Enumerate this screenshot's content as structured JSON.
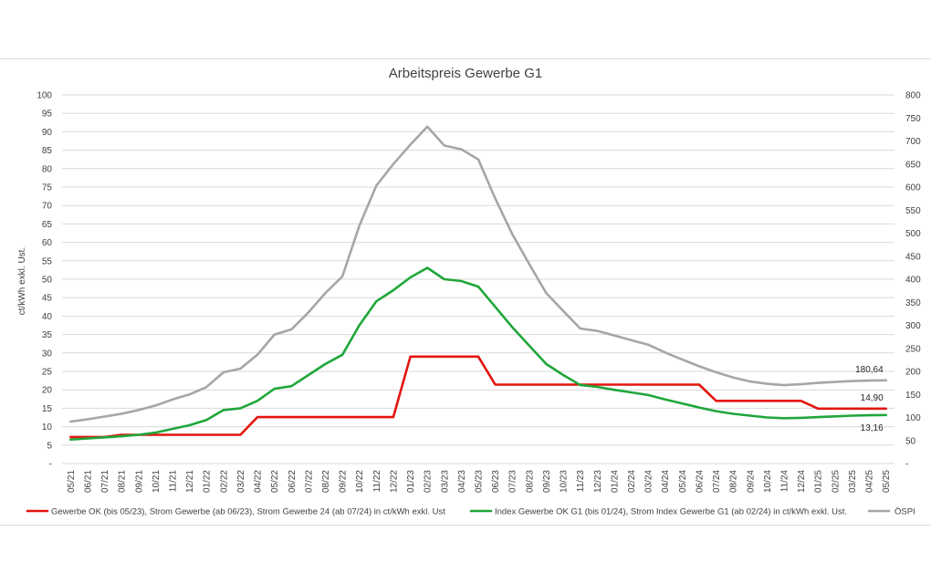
{
  "chart_data": {
    "type": "line",
    "title": "Arbeitspreis Gewerbe G1",
    "ylabel": "ct/kWh exkl. Ust.",
    "ylim": [
      0,
      100
    ],
    "yticks": [
      "-",
      "5",
      "10",
      "15",
      "20",
      "25",
      "30",
      "35",
      "40",
      "45",
      "50",
      "55",
      "60",
      "65",
      "70",
      "75",
      "80",
      "85",
      "90",
      "95",
      "100"
    ],
    "y2lim": [
      0,
      800
    ],
    "y2ticks": [
      "-",
      "50",
      "100",
      "150",
      "200",
      "250",
      "300",
      "350",
      "400",
      "450",
      "500",
      "550",
      "600",
      "650",
      "700",
      "750",
      "800"
    ],
    "grid": "horizontal",
    "legend_position": "bottom",
    "categories": [
      "05/21",
      "06/21",
      "07/21",
      "08/21",
      "09/21",
      "10/21",
      "11/21",
      "12/21",
      "01/22",
      "02/22",
      "03/22",
      "04/22",
      "05/22",
      "06/22",
      "07/22",
      "08/22",
      "09/22",
      "10/22",
      "11/22",
      "12/22",
      "01/23",
      "02/23",
      "03/23",
      "04/23",
      "05/23",
      "06/23",
      "07/23",
      "08/23",
      "09/23",
      "10/23",
      "11/23",
      "12/23",
      "01/24",
      "02/24",
      "03/24",
      "04/24",
      "05/24",
      "06/24",
      "07/24",
      "08/24",
      "09/24",
      "10/24",
      "11/24",
      "12/24",
      "01/25",
      "02/25",
      "03/25",
      "04/25",
      "05/25"
    ],
    "series": [
      {
        "name": "Gewerbe OK (bis 05/23), Strom Gewerbe (ab 06/23), Strom Gewerbe 24 (ab 07/24) in ct/kWh exkl. Ust",
        "axis": "left",
        "color": "#e3140f",
        "values": [
          7.2,
          7.2,
          7.2,
          7.8,
          7.8,
          7.8,
          7.8,
          7.8,
          7.8,
          7.8,
          7.8,
          12.6,
          12.6,
          12.6,
          12.6,
          12.6,
          12.6,
          12.6,
          12.6,
          12.6,
          29.0,
          29.0,
          29.0,
          29.0,
          29.0,
          21.4,
          21.4,
          21.4,
          21.4,
          21.4,
          21.4,
          21.4,
          21.4,
          21.4,
          21.4,
          21.4,
          21.4,
          21.4,
          17.0,
          17.0,
          17.0,
          17.0,
          17.0,
          17.0,
          14.9,
          14.9,
          14.9,
          14.9,
          14.9
        ],
        "end_label": "14,90"
      },
      {
        "name": "Index Gewerbe OK G1 (bis 01/24), Strom Index Gewerbe G1 (ab 02/24) in ct/kWh exkl. Ust.",
        "axis": "left",
        "color": "#1fa63a",
        "values": [
          6.5,
          6.8,
          7.1,
          7.4,
          7.8,
          8.4,
          9.4,
          10.4,
          11.8,
          14.5,
          15.0,
          17.0,
          20.3,
          21.0,
          24.0,
          27.0,
          29.5,
          37.5,
          44.0,
          47.0,
          50.5,
          53.1,
          50.0,
          49.5,
          48.0,
          42.5,
          37.0,
          32.0,
          27.0,
          24.0,
          21.3,
          20.8,
          20.0,
          19.3,
          18.6,
          17.4,
          16.3,
          15.2,
          14.2,
          13.5,
          13.0,
          12.5,
          12.3,
          12.4,
          12.6,
          12.8,
          13.0,
          13.1,
          13.16
        ],
        "end_label": "13,16"
      },
      {
        "name": "ÖSPI",
        "axis": "right",
        "color": "#a6a6a6",
        "values": [
          91,
          96,
          102,
          108,
          116,
          126,
          139,
          150,
          166,
          198,
          206,
          236,
          280,
          291,
          328,
          370,
          406,
          516,
          603,
          650,
          692,
          731,
          690,
          682,
          660,
          575,
          498,
          433,
          370,
          331,
          293,
          288,
          278,
          268,
          258,
          241,
          226,
          211,
          198,
          187,
          178,
          173,
          170,
          172,
          175,
          177,
          179,
          180,
          180.64
        ],
        "end_label": "180,64"
      }
    ]
  }
}
